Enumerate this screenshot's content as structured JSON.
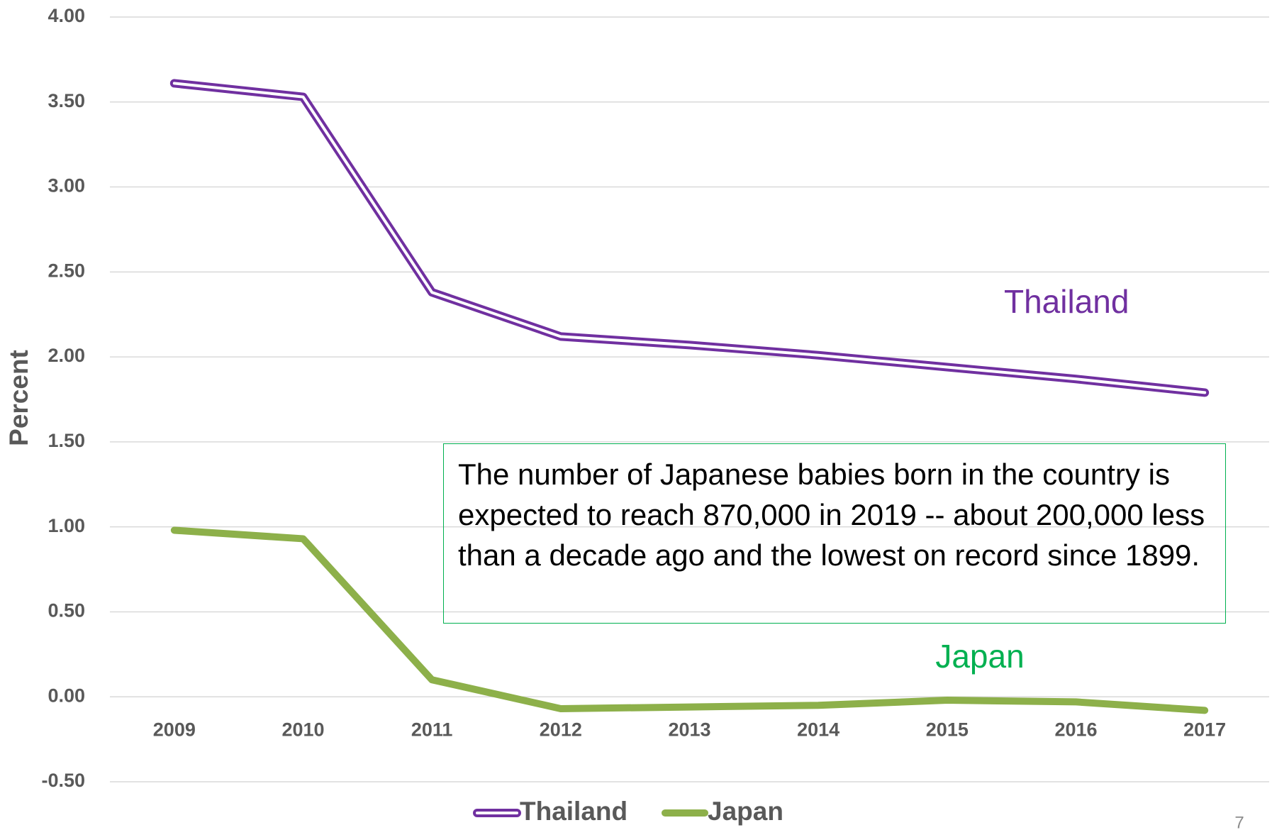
{
  "chart_data": {
    "type": "line",
    "y_label": "Percent",
    "categories": [
      "2009",
      "2010",
      "2011",
      "2012",
      "2013",
      "2014",
      "2015",
      "2016",
      "2017"
    ],
    "series": [
      {
        "name": "Thailand",
        "color": "#7030a0",
        "style": "double",
        "values": [
          3.61,
          3.53,
          2.38,
          2.12,
          2.07,
          2.01,
          1.94,
          1.87,
          1.79
        ]
      },
      {
        "name": "Japan",
        "color": "#8db04a",
        "style": "solid",
        "values": [
          0.98,
          0.93,
          0.1,
          -0.07,
          -0.06,
          -0.05,
          -0.02,
          -0.03,
          -0.08
        ]
      }
    ],
    "ylim": [
      -0.5,
      4.0
    ],
    "yticks": [
      {
        "value": -0.5,
        "label": "-0.50"
      },
      {
        "value": 0,
        "label": "0.00"
      },
      {
        "value": 0.5,
        "label": "0.50"
      },
      {
        "value": 1,
        "label": "1.00"
      },
      {
        "value": 1.5,
        "label": "1.50"
      },
      {
        "value": 2,
        "label": "2.00"
      },
      {
        "value": 2.5,
        "label": "2.50"
      },
      {
        "value": 3,
        "label": "3.00"
      },
      {
        "value": 3.5,
        "label": "3.50"
      },
      {
        "value": 4,
        "label": "4.00"
      }
    ],
    "grid": true,
    "legend": "bottom",
    "annotations": [
      {
        "text": "Thailand",
        "color": "#7030a0"
      },
      {
        "text": "Japan",
        "color": "#00b050"
      },
      {
        "text": "The number of Japanese babies born in the country is expected to reach 870,000 in 2019 -- about 200,000 less than a decade ago and the lowest on record since 1899.",
        "color": "#00b050"
      }
    ],
    "page_number": "7"
  }
}
